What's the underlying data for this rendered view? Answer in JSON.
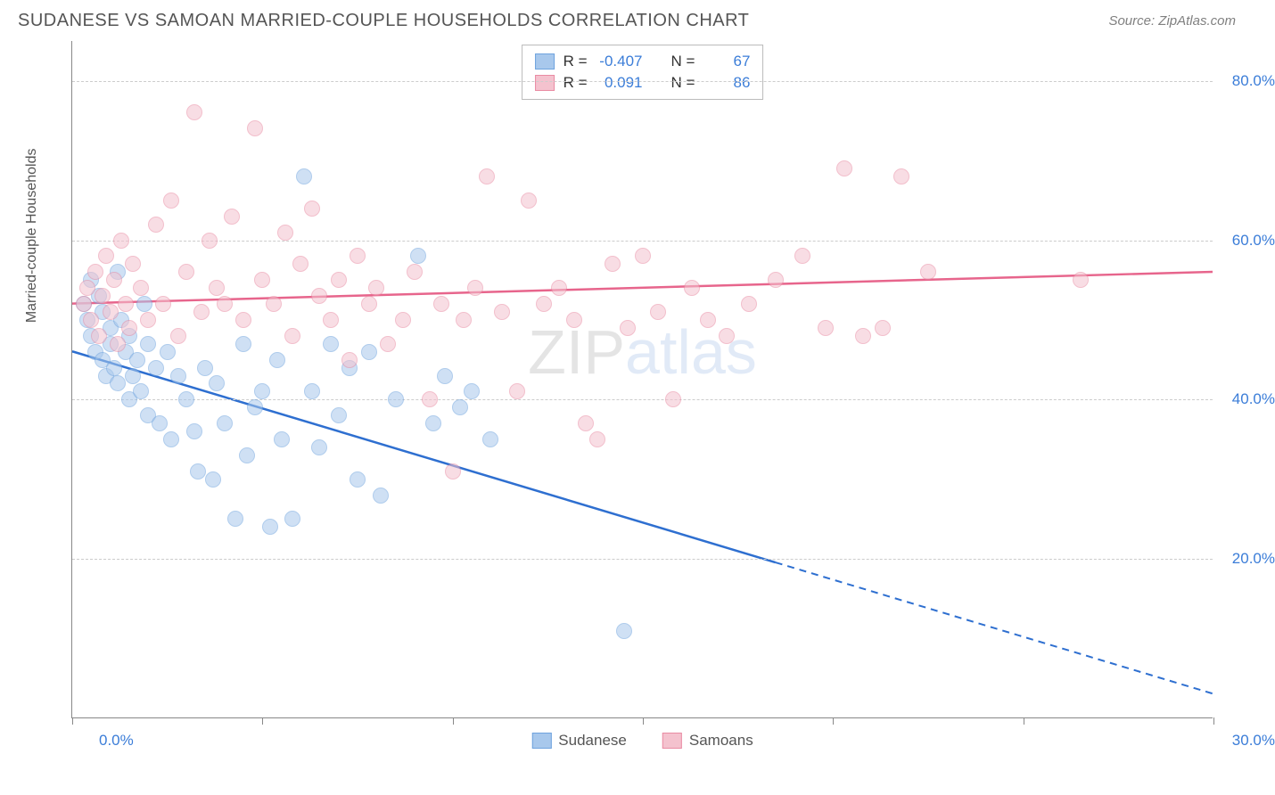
{
  "header": {
    "title": "SUDANESE VS SAMOAN MARRIED-COUPLE HOUSEHOLDS CORRELATION CHART",
    "source": "Source: ZipAtlas.com"
  },
  "chart": {
    "type": "scatter",
    "ylabel": "Married-couple Households",
    "xlim": [
      0,
      30
    ],
    "ylim": [
      0,
      85
    ],
    "x_ticks": [
      0,
      5,
      10,
      15,
      20,
      25,
      30
    ],
    "x_tick_labels_shown": {
      "start": "0.0%",
      "end": "30.0%"
    },
    "y_gridlines": [
      20,
      40,
      60,
      80
    ],
    "y_tick_labels": [
      "20.0%",
      "40.0%",
      "60.0%",
      "80.0%"
    ],
    "grid_color": "#cccccc",
    "axis_color": "#888888",
    "background_color": "#ffffff",
    "y_label_color": "#3b7dd8",
    "label_fontsize": 16,
    "tick_fontsize": 17,
    "point_radius": 9,
    "point_opacity": 0.55,
    "series": [
      {
        "name": "Sudanese",
        "fill": "#a8c8ec",
        "stroke": "#6fa3de",
        "R": "-0.407",
        "N": "67",
        "trend": {
          "x1": 0,
          "y1": 46,
          "x2": 30,
          "y2": 3,
          "solid_until_x": 18.5,
          "color": "#2e6fd0",
          "width": 2.5
        },
        "points": [
          [
            0.3,
            52
          ],
          [
            0.4,
            50
          ],
          [
            0.5,
            55
          ],
          [
            0.5,
            48
          ],
          [
            0.6,
            46
          ],
          [
            0.7,
            53
          ],
          [
            0.8,
            45
          ],
          [
            0.8,
            51
          ],
          [
            0.9,
            43
          ],
          [
            1.0,
            49
          ],
          [
            1.0,
            47
          ],
          [
            1.1,
            44
          ],
          [
            1.2,
            56
          ],
          [
            1.2,
            42
          ],
          [
            1.3,
            50
          ],
          [
            1.4,
            46
          ],
          [
            1.5,
            40
          ],
          [
            1.5,
            48
          ],
          [
            1.6,
            43
          ],
          [
            1.7,
            45
          ],
          [
            1.8,
            41
          ],
          [
            1.9,
            52
          ],
          [
            2.0,
            38
          ],
          [
            2.0,
            47
          ],
          [
            2.2,
            44
          ],
          [
            2.3,
            37
          ],
          [
            2.5,
            46
          ],
          [
            2.6,
            35
          ],
          [
            2.8,
            43
          ],
          [
            3.0,
            40
          ],
          [
            3.2,
            36
          ],
          [
            3.3,
            31
          ],
          [
            3.5,
            44
          ],
          [
            3.7,
            30
          ],
          [
            3.8,
            42
          ],
          [
            4.0,
            37
          ],
          [
            4.3,
            25
          ],
          [
            4.5,
            47
          ],
          [
            4.6,
            33
          ],
          [
            4.8,
            39
          ],
          [
            5.0,
            41
          ],
          [
            5.2,
            24
          ],
          [
            5.4,
            45
          ],
          [
            5.5,
            35
          ],
          [
            5.8,
            25
          ],
          [
            6.1,
            68
          ],
          [
            6.3,
            41
          ],
          [
            6.5,
            34
          ],
          [
            6.8,
            47
          ],
          [
            7.0,
            38
          ],
          [
            7.3,
            44
          ],
          [
            7.5,
            30
          ],
          [
            7.8,
            46
          ],
          [
            8.1,
            28
          ],
          [
            8.5,
            40
          ],
          [
            9.1,
            58
          ],
          [
            9.5,
            37
          ],
          [
            9.8,
            43
          ],
          [
            10.2,
            39
          ],
          [
            10.5,
            41
          ],
          [
            11.0,
            35
          ],
          [
            14.5,
            11
          ]
        ]
      },
      {
        "name": "Samoans",
        "fill": "#f4c2ce",
        "stroke": "#e98ba3",
        "R": "0.091",
        "N": "86",
        "trend": {
          "x1": 0,
          "y1": 52,
          "x2": 30,
          "y2": 56,
          "solid_until_x": 30,
          "color": "#e7658c",
          "width": 2.5
        },
        "points": [
          [
            0.3,
            52
          ],
          [
            0.4,
            54
          ],
          [
            0.5,
            50
          ],
          [
            0.6,
            56
          ],
          [
            0.7,
            48
          ],
          [
            0.8,
            53
          ],
          [
            0.9,
            58
          ],
          [
            1.0,
            51
          ],
          [
            1.1,
            55
          ],
          [
            1.2,
            47
          ],
          [
            1.3,
            60
          ],
          [
            1.4,
            52
          ],
          [
            1.5,
            49
          ],
          [
            1.6,
            57
          ],
          [
            1.8,
            54
          ],
          [
            2.0,
            50
          ],
          [
            2.2,
            62
          ],
          [
            2.4,
            52
          ],
          [
            2.6,
            65
          ],
          [
            2.8,
            48
          ],
          [
            3.0,
            56
          ],
          [
            3.2,
            76
          ],
          [
            3.4,
            51
          ],
          [
            3.6,
            60
          ],
          [
            3.8,
            54
          ],
          [
            4.0,
            52
          ],
          [
            4.2,
            63
          ],
          [
            4.5,
            50
          ],
          [
            4.8,
            74
          ],
          [
            5.0,
            55
          ],
          [
            5.3,
            52
          ],
          [
            5.6,
            61
          ],
          [
            5.8,
            48
          ],
          [
            6.0,
            57
          ],
          [
            6.3,
            64
          ],
          [
            6.5,
            53
          ],
          [
            6.8,
            50
          ],
          [
            7.0,
            55
          ],
          [
            7.3,
            45
          ],
          [
            7.5,
            58
          ],
          [
            7.8,
            52
          ],
          [
            8.0,
            54
          ],
          [
            8.3,
            47
          ],
          [
            8.7,
            50
          ],
          [
            9.0,
            56
          ],
          [
            9.4,
            40
          ],
          [
            9.7,
            52
          ],
          [
            10.0,
            31
          ],
          [
            10.3,
            50
          ],
          [
            10.6,
            54
          ],
          [
            10.9,
            68
          ],
          [
            11.3,
            51
          ],
          [
            11.7,
            41
          ],
          [
            12.0,
            65
          ],
          [
            12.4,
            52
          ],
          [
            12.8,
            54
          ],
          [
            13.2,
            50
          ],
          [
            13.5,
            37
          ],
          [
            13.8,
            35
          ],
          [
            14.2,
            57
          ],
          [
            14.6,
            49
          ],
          [
            15.0,
            58
          ],
          [
            15.4,
            51
          ],
          [
            15.8,
            40
          ],
          [
            16.3,
            54
          ],
          [
            16.7,
            50
          ],
          [
            17.2,
            48
          ],
          [
            17.8,
            52
          ],
          [
            18.5,
            55
          ],
          [
            19.2,
            58
          ],
          [
            19.8,
            49
          ],
          [
            20.3,
            69
          ],
          [
            20.8,
            48
          ],
          [
            21.3,
            49
          ],
          [
            21.8,
            68
          ],
          [
            22.5,
            56
          ],
          [
            26.5,
            55
          ]
        ]
      }
    ],
    "stats_legend": {
      "border_color": "#bbbbbb",
      "r_label": "R =",
      "n_label": "N =",
      "value_color": "#3b7dd8"
    },
    "bottom_legend": {
      "items": [
        "Sudanese",
        "Samoans"
      ]
    },
    "watermark": {
      "zip": "ZIP",
      "atlas": "atlas"
    }
  }
}
